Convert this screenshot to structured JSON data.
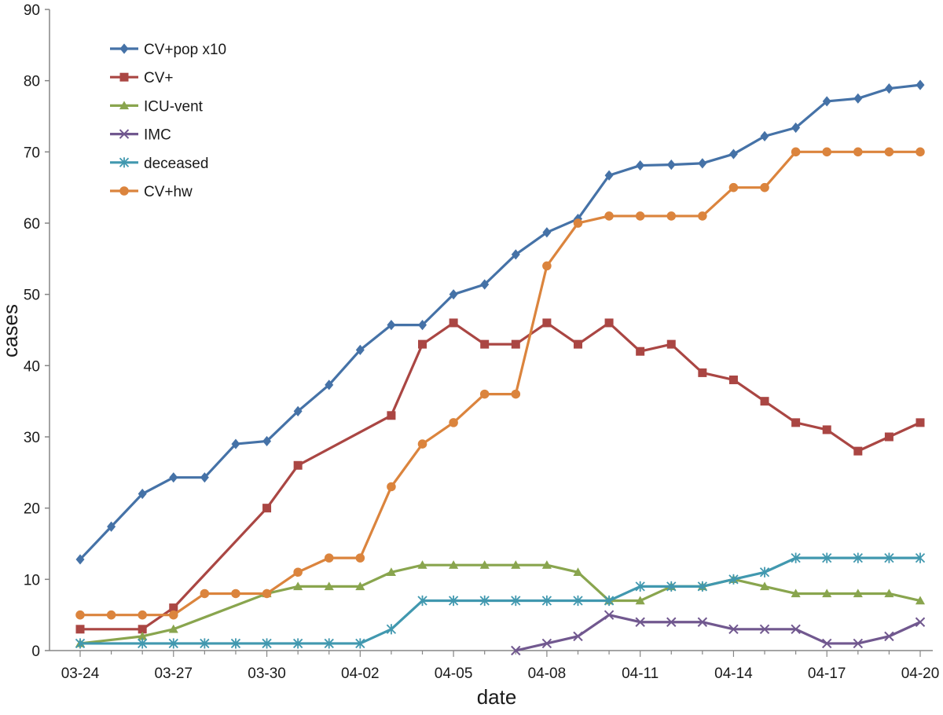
{
  "chart_data": {
    "type": "line",
    "title": "",
    "xlabel": "date",
    "ylabel": "cases",
    "ylim": [
      0,
      90
    ],
    "yticks": [
      0,
      10,
      20,
      30,
      40,
      50,
      60,
      70,
      80,
      90
    ],
    "x_dates": [
      "03-24",
      "03-25",
      "03-26",
      "03-27",
      "03-28",
      "03-29",
      "03-30",
      "03-31",
      "04-01",
      "04-02",
      "04-03",
      "04-04",
      "04-05",
      "04-06",
      "04-07",
      "04-08",
      "04-09",
      "04-10",
      "04-11",
      "04-12",
      "04-13",
      "04-14",
      "04-15",
      "04-16",
      "04-17",
      "04-18",
      "04-19",
      "04-20"
    ],
    "xtick_labels": [
      "03-24",
      "03-27",
      "03-30",
      "04-02",
      "04-05",
      "04-08",
      "04-11",
      "04-14",
      "04-17",
      "04-20"
    ],
    "grid": false,
    "legend_position": "top-left",
    "series": [
      {
        "name": "CV+pop x10",
        "color": "#4572a7",
        "marker": "diamond",
        "values": [
          12.8,
          17.4,
          22,
          24.3,
          24.3,
          29,
          29.4,
          33.6,
          37.3,
          42.2,
          45.7,
          45.7,
          50,
          51.4,
          55.6,
          58.7,
          60.6,
          66.7,
          68.1,
          68.2,
          68.4,
          69.7,
          72.2,
          73.4,
          77.1,
          77.5,
          78.9,
          79.4
        ]
      },
      {
        "name": "CV+",
        "color": "#aa4643",
        "marker": "square",
        "values": [
          3,
          null,
          3,
          6,
          null,
          null,
          20,
          26,
          null,
          null,
          33,
          43,
          46,
          43,
          43,
          46,
          43,
          46,
          42,
          43,
          39,
          38,
          35,
          32,
          31,
          28,
          30,
          32
        ]
      },
      {
        "name": "ICU-vent",
        "color": "#89a54e",
        "marker": "triangle",
        "values": [
          1,
          null,
          2,
          3,
          null,
          null,
          8,
          9,
          9,
          9,
          11,
          12,
          12,
          12,
          12,
          12,
          11,
          7,
          7,
          9,
          9,
          10,
          9,
          8,
          8,
          8,
          8,
          7
        ]
      },
      {
        "name": "IMC",
        "color": "#71588f",
        "marker": "x",
        "values": [
          null,
          null,
          null,
          null,
          null,
          null,
          null,
          null,
          null,
          null,
          null,
          null,
          null,
          null,
          0,
          1,
          2,
          5,
          4,
          4,
          4,
          3,
          3,
          3,
          1,
          1,
          2,
          4
        ]
      },
      {
        "name": "deceased",
        "color": "#4198af",
        "marker": "star",
        "values": [
          1,
          null,
          1,
          1,
          1,
          1,
          1,
          1,
          1,
          1,
          3,
          7,
          7,
          7,
          7,
          7,
          7,
          7,
          9,
          9,
          9,
          10,
          11,
          13,
          13,
          13,
          13,
          13
        ]
      },
      {
        "name": "CV+hw",
        "color": "#db843d",
        "marker": "circle",
        "values": [
          5,
          5,
          5,
          5,
          8,
          8,
          8,
          11,
          13,
          13,
          23,
          29,
          32,
          36,
          36,
          54,
          60,
          61,
          61,
          61,
          61,
          65,
          65,
          70,
          70,
          70,
          70,
          70
        ]
      }
    ]
  }
}
